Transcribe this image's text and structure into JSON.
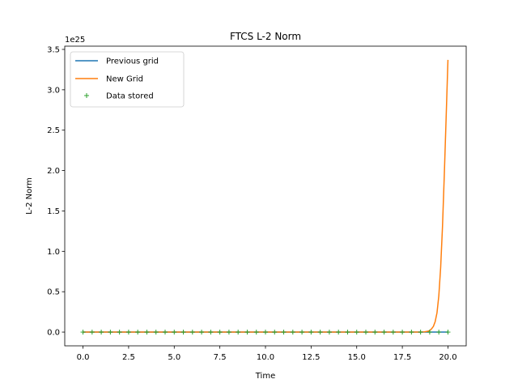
{
  "chart_data": {
    "type": "line",
    "title": "FTCS L-2 Norm",
    "xlabel": "Time",
    "ylabel": "L-2 Norm",
    "y_offset_label": "1e25",
    "xlim": [
      -1.0,
      21.0
    ],
    "ylim": [
      -0.17,
      3.54
    ],
    "x_ticks": [
      0,
      2.5,
      5,
      7.5,
      10,
      12.5,
      15,
      17.5,
      20
    ],
    "x_tick_labels": [
      "0.0",
      "2.5",
      "5.0",
      "7.5",
      "10.0",
      "12.5",
      "15.0",
      "17.5",
      "20.0"
    ],
    "y_ticks": [
      0,
      0.5,
      1,
      1.5,
      2,
      2.5,
      3,
      3.5
    ],
    "y_tick_labels": [
      "0.0",
      "0.5",
      "1.0",
      "1.5",
      "2.0",
      "2.5",
      "3.0",
      "3.5"
    ],
    "grid": false,
    "legend_position": "top-left",
    "series": [
      {
        "name": "Previous grid",
        "style": "line",
        "color": "#1f77b4",
        "x": [
          0,
          20
        ],
        "y": [
          0,
          0
        ]
      },
      {
        "name": "New Grid",
        "style": "line",
        "color": "#ff7f0e",
        "x": [
          0,
          18.5,
          18.7,
          18.9,
          19.0,
          19.1,
          19.2,
          19.3,
          19.4,
          19.5,
          19.6,
          19.7,
          19.8,
          19.9,
          20.0
        ],
        "y": [
          0,
          0,
          0.003,
          0.01,
          0.02,
          0.04,
          0.07,
          0.13,
          0.24,
          0.45,
          0.8,
          1.3,
          1.95,
          2.65,
          3.37
        ]
      },
      {
        "name": "Data stored",
        "style": "marker",
        "marker": "+",
        "color": "#2ca02c",
        "x": [
          0,
          0.5,
          1,
          1.5,
          2,
          2.5,
          3,
          3.5,
          4,
          4.5,
          5,
          5.5,
          6,
          6.5,
          7,
          7.5,
          8,
          8.5,
          9,
          9.5,
          10,
          10.5,
          11,
          11.5,
          12,
          12.5,
          13,
          13.5,
          14,
          14.5,
          15,
          15.5,
          16,
          16.5,
          17,
          17.5,
          18,
          18.5,
          19,
          19.5,
          20
        ],
        "y": [
          0,
          0,
          0,
          0,
          0,
          0,
          0,
          0,
          0,
          0,
          0,
          0,
          0,
          0,
          0,
          0,
          0,
          0,
          0,
          0,
          0,
          0,
          0,
          0,
          0,
          0,
          0,
          0,
          0,
          0,
          0,
          0,
          0,
          0,
          0,
          0,
          0,
          0,
          0,
          0,
          0
        ]
      }
    ]
  }
}
